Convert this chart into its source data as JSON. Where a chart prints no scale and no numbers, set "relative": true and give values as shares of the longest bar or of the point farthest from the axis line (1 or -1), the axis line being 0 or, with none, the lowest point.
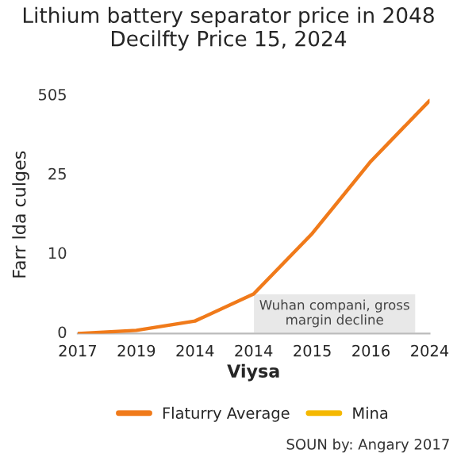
{
  "chart_data": {
    "type": "line",
    "title": "Lithium battery separator price in 2048\nDecilfty Price 15, 2024",
    "xlabel": "Viysa",
    "ylabel": "Farr lda culges",
    "categories": [
      "2017",
      "2019",
      "2014",
      "2014",
      "2015",
      "2016",
      "2024"
    ],
    "relative": true,
    "series": [
      {
        "name": "Flaturry Average",
        "color": "#f07a1a",
        "values": [
          0,
          0.014,
          0.054,
          0.17,
          0.43,
          0.74,
          1
        ]
      },
      {
        "name": "Mina",
        "color": "#f5b800",
        "values": [
          null,
          null,
          null,
          null,
          null,
          null,
          null
        ]
      }
    ],
    "legend": "bottom",
    "marker": "none",
    "line_style": "solid",
    "annotations": [
      "0",
      "10",
      "25",
      "505",
      "Wuhan compani, gross\nmargin decline",
      "SOUN by: Angary 2017"
    ]
  }
}
